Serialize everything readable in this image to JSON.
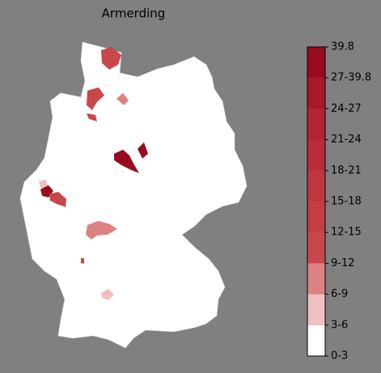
{
  "title": "Armerding",
  "legend": {
    "labels": [
      "0-3",
      "3-6",
      "6-9",
      "9-12",
      "12-15",
      "15-18",
      "18-21",
      "21-24",
      "24-27",
      "27-39.8",
      "39.8"
    ],
    "colors": [
      "#ffffff",
      "#efc0c0",
      "#dc8282",
      "#c8474c",
      "#c43e44",
      "#bf363f",
      "#b92d38",
      "#b22430",
      "#a81826",
      "#990b1e"
    ]
  }
}
